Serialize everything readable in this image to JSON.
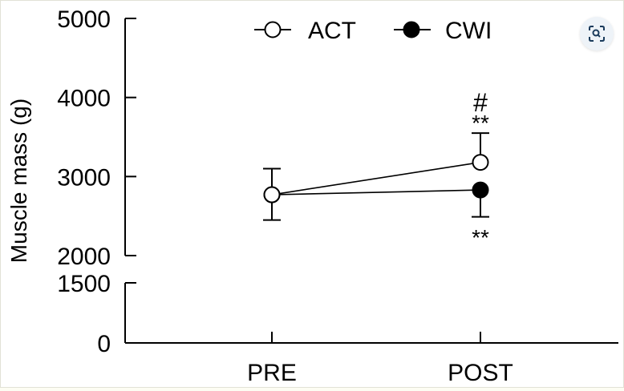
{
  "chart_data": {
    "type": "line",
    "categories": [
      "PRE",
      "POST"
    ],
    "series": [
      {
        "name": "ACT",
        "marker": "open-circle",
        "values": [
          2770,
          3180
        ],
        "error_upper": [
          3100,
          3550
        ],
        "error_lower": null
      },
      {
        "name": "CWI",
        "marker": "filled-circle",
        "values": [
          2770,
          2830
        ],
        "error_upper": null,
        "error_lower": [
          2450,
          2490
        ]
      }
    ],
    "ylabel": "Muscle mass (g)",
    "xlabel": "",
    "ylim": [
      0,
      5000
    ],
    "y_axis_break": [
      1500,
      2000
    ],
    "yticks": [
      "0",
      "1500",
      "2000",
      "3000",
      "4000",
      "5000"
    ],
    "annotations": [
      {
        "text": "#",
        "category": "POST",
        "series": "ACT",
        "position": "above"
      },
      {
        "text": "**",
        "category": "POST",
        "series": "ACT",
        "position": "above"
      },
      {
        "text": "**",
        "category": "POST",
        "series": "CWI",
        "position": "below"
      }
    ],
    "legend": {
      "placement": "top-center",
      "entries": [
        "ACT",
        "CWI"
      ]
    },
    "grid": false
  },
  "colors": {
    "line": "#000000",
    "background": "#ffffff"
  },
  "ui": {
    "lens_button_icon": "image-search-lens-icon"
  }
}
